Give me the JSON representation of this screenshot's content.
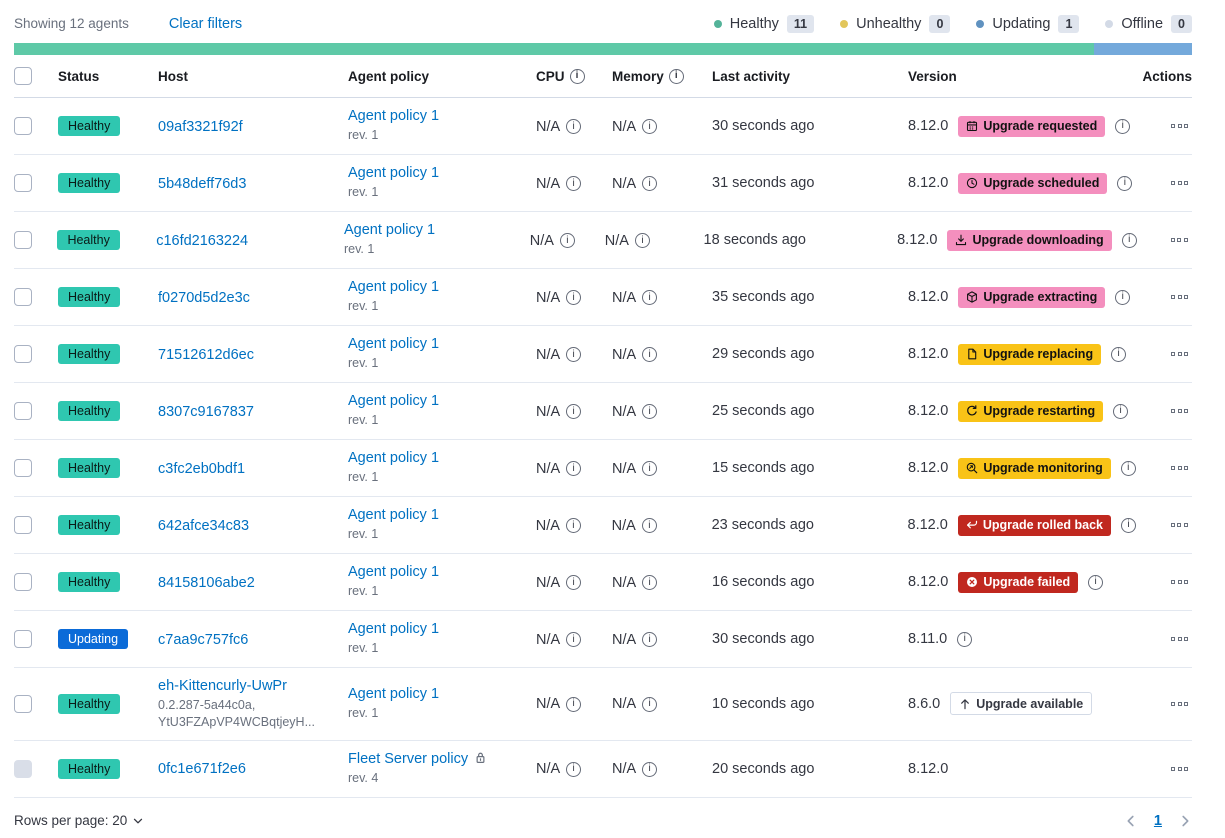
{
  "toolbar": {
    "showing": "Showing 12 agents",
    "clear_filters": "Clear filters",
    "legend": [
      {
        "label": "Healthy",
        "count": "11",
        "dot": "#54B399"
      },
      {
        "label": "Unhealthy",
        "count": "0",
        "dot": "#E2C65B"
      },
      {
        "label": "Updating",
        "count": "1",
        "dot": "#6092C0"
      },
      {
        "label": "Offline",
        "count": "0",
        "dot": "#D3DAE6"
      }
    ]
  },
  "status_bar": {
    "segments": [
      {
        "name": "healthy",
        "color": "#5EC9A7",
        "fraction": 0.9167
      },
      {
        "name": "updating",
        "color": "#74A9DB",
        "fraction": 0.0833
      }
    ]
  },
  "table": {
    "headers": {
      "status": "Status",
      "host": "Host",
      "policy": "Agent policy",
      "cpu": "CPU",
      "memory": "Memory",
      "last_activity": "Last activity",
      "version": "Version",
      "actions": "Actions"
    },
    "rows": [
      {
        "status": {
          "label": "Healthy",
          "kind": "healthy"
        },
        "host": {
          "name": "09af3321f92f",
          "sub": []
        },
        "policy": {
          "name": "Agent policy 1",
          "rev": "rev. 1",
          "locked": false
        },
        "cpu": "N/A",
        "memory": "N/A",
        "last_activity": "30 seconds ago",
        "version": "8.12.0",
        "upgrade": {
          "label": "Upgrade requested",
          "kind": "pink",
          "icon": "calendar-icon"
        },
        "info": true,
        "checkbox_disabled": false
      },
      {
        "status": {
          "label": "Healthy",
          "kind": "healthy"
        },
        "host": {
          "name": "5b48deff76d3",
          "sub": []
        },
        "policy": {
          "name": "Agent policy 1",
          "rev": "rev. 1",
          "locked": false
        },
        "cpu": "N/A",
        "memory": "N/A",
        "last_activity": "31 seconds ago",
        "version": "8.12.0",
        "upgrade": {
          "label": "Upgrade scheduled",
          "kind": "pink",
          "icon": "clock-icon"
        },
        "info": true,
        "checkbox_disabled": false
      },
      {
        "status": {
          "label": "Healthy",
          "kind": "healthy"
        },
        "host": {
          "name": "c16fd2163224",
          "sub": []
        },
        "policy": {
          "name": "Agent policy 1",
          "rev": "rev. 1",
          "locked": false
        },
        "cpu": "N/A",
        "memory": "N/A",
        "last_activity": "18 seconds ago",
        "version": "8.12.0",
        "upgrade": {
          "label": "Upgrade downloading",
          "kind": "pink",
          "icon": "download-icon"
        },
        "info": true,
        "checkbox_disabled": false
      },
      {
        "status": {
          "label": "Healthy",
          "kind": "healthy"
        },
        "host": {
          "name": "f0270d5d2e3c",
          "sub": []
        },
        "policy": {
          "name": "Agent policy 1",
          "rev": "rev. 1",
          "locked": false
        },
        "cpu": "N/A",
        "memory": "N/A",
        "last_activity": "35 seconds ago",
        "version": "8.12.0",
        "upgrade": {
          "label": "Upgrade extracting",
          "kind": "pink",
          "icon": "package-icon"
        },
        "info": true,
        "checkbox_disabled": false
      },
      {
        "status": {
          "label": "Healthy",
          "kind": "healthy"
        },
        "host": {
          "name": "71512612d6ec",
          "sub": []
        },
        "policy": {
          "name": "Agent policy 1",
          "rev": "rev. 1",
          "locked": false
        },
        "cpu": "N/A",
        "memory": "N/A",
        "last_activity": "29 seconds ago",
        "version": "8.12.0",
        "upgrade": {
          "label": "Upgrade replacing",
          "kind": "warning",
          "icon": "document-icon"
        },
        "info": true,
        "checkbox_disabled": false
      },
      {
        "status": {
          "label": "Healthy",
          "kind": "healthy"
        },
        "host": {
          "name": "8307c9167837",
          "sub": []
        },
        "policy": {
          "name": "Agent policy 1",
          "rev": "rev. 1",
          "locked": false
        },
        "cpu": "N/A",
        "memory": "N/A",
        "last_activity": "25 seconds ago",
        "version": "8.12.0",
        "upgrade": {
          "label": "Upgrade restarting",
          "kind": "warning",
          "icon": "refresh-icon"
        },
        "info": true,
        "checkbox_disabled": false
      },
      {
        "status": {
          "label": "Healthy",
          "kind": "healthy"
        },
        "host": {
          "name": "c3fc2eb0bdf1",
          "sub": []
        },
        "policy": {
          "name": "Agent policy 1",
          "rev": "rev. 1",
          "locked": false
        },
        "cpu": "N/A",
        "memory": "N/A",
        "last_activity": "15 seconds ago",
        "version": "8.12.0",
        "upgrade": {
          "label": "Upgrade monitoring",
          "kind": "warning",
          "icon": "inspect-icon"
        },
        "info": true,
        "checkbox_disabled": false
      },
      {
        "status": {
          "label": "Healthy",
          "kind": "healthy"
        },
        "host": {
          "name": "642afce34c83",
          "sub": []
        },
        "policy": {
          "name": "Agent policy 1",
          "rev": "rev. 1",
          "locked": false
        },
        "cpu": "N/A",
        "memory": "N/A",
        "last_activity": "23 seconds ago",
        "version": "8.12.0",
        "upgrade": {
          "label": "Upgrade rolled back",
          "kind": "danger",
          "icon": "return-icon"
        },
        "info": true,
        "checkbox_disabled": false
      },
      {
        "status": {
          "label": "Healthy",
          "kind": "healthy"
        },
        "host": {
          "name": "84158106abe2",
          "sub": []
        },
        "policy": {
          "name": "Agent policy 1",
          "rev": "rev. 1",
          "locked": false
        },
        "cpu": "N/A",
        "memory": "N/A",
        "last_activity": "16 seconds ago",
        "version": "8.12.0",
        "upgrade": {
          "label": "Upgrade failed",
          "kind": "danger",
          "icon": "error-icon"
        },
        "info": true,
        "checkbox_disabled": false
      },
      {
        "status": {
          "label": "Updating",
          "kind": "updating"
        },
        "host": {
          "name": "c7aa9c757fc6",
          "sub": []
        },
        "policy": {
          "name": "Agent policy 1",
          "rev": "rev. 1",
          "locked": false
        },
        "cpu": "N/A",
        "memory": "N/A",
        "last_activity": "30 seconds ago",
        "version": "8.11.0",
        "upgrade": null,
        "info": true,
        "checkbox_disabled": false
      },
      {
        "status": {
          "label": "Healthy",
          "kind": "healthy"
        },
        "host": {
          "name": "eh-Kittencurly-UwPr",
          "sub": [
            "0.2.287-5a44c0a,",
            "YtU3FZApVP4WCBqtjeyH..."
          ]
        },
        "policy": {
          "name": "Agent policy 1",
          "rev": "rev. 1",
          "locked": false
        },
        "cpu": "N/A",
        "memory": "N/A",
        "last_activity": "10 seconds ago",
        "version": "8.6.0",
        "upgrade": {
          "label": "Upgrade available",
          "kind": "hollow",
          "icon": "arrow-up-icon"
        },
        "info": false,
        "checkbox_disabled": false
      },
      {
        "status": {
          "label": "Healthy",
          "kind": "healthy"
        },
        "host": {
          "name": "0fc1e671f2e6",
          "sub": []
        },
        "policy": {
          "name": "Fleet Server policy",
          "rev": "rev. 4",
          "locked": true
        },
        "cpu": "N/A",
        "memory": "N/A",
        "last_activity": "20 seconds ago",
        "version": "8.12.0",
        "upgrade": null,
        "info": false,
        "checkbox_disabled": true
      }
    ]
  },
  "footer": {
    "rows_per_page": "Rows per page: 20",
    "page": "1"
  },
  "colors": {
    "healthy_badge": "#2FC7B0",
    "updating_badge": "#0B6BD8",
    "pink_badge": "#F48FBE",
    "warning_badge": "#F9C317",
    "danger_badge": "#C0281F",
    "link": "#0071C2"
  }
}
